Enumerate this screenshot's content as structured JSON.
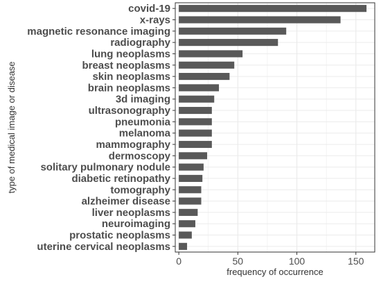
{
  "chart_data": {
    "type": "bar",
    "orientation": "horizontal",
    "title": "",
    "xlabel": "frequency of occurrence",
    "ylabel": "type of medical image or disease",
    "categories": [
      "covid-19",
      "x-rays",
      "magnetic resonance imaging",
      "radiography",
      "lung neoplasms",
      "breast neoplasms",
      "skin neoplasms",
      "brain neoplasms",
      "3d imaging",
      "ultrasonography",
      "pneumonia",
      "melanoma",
      "mammography",
      "dermoscopy",
      "solitary pulmonary nodule",
      "diabetic retinopathy",
      "tomography",
      "alzheimer disease",
      "liver neoplasms",
      "neuroimaging",
      "prostatic neoplasms",
      "uterine cervical neoplasms"
    ],
    "values": [
      159,
      137,
      91,
      84,
      54,
      47,
      43,
      34,
      30,
      28,
      28,
      28,
      28,
      24,
      21,
      20,
      19,
      19,
      16,
      14,
      11,
      7
    ],
    "xlim": [
      -3,
      166
    ],
    "xticks": [
      0,
      50,
      100,
      150
    ],
    "grid": true,
    "legend": "none",
    "bar_color": "#595959",
    "grid_color": "#ebebeb",
    "border_color": "#333333"
  }
}
